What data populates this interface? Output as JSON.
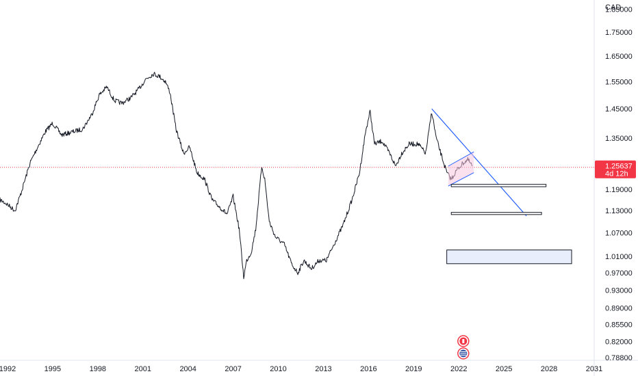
{
  "chart_data": {
    "type": "line",
    "currency": "CAD",
    "x_ticks": [
      "1992",
      "1995",
      "1998",
      "2001",
      "2004",
      "2007",
      "2010",
      "2013",
      "2016",
      "2019",
      "2022",
      "2025",
      "2028",
      "2031"
    ],
    "y_ticks": [
      "1.85000",
      "1.75000",
      "1.65000",
      "1.55000",
      "1.45000",
      "1.35000",
      "1.19000",
      "1.13000",
      "1.07000",
      "1.01000",
      "0.97000",
      "0.93000",
      "0.89000",
      "0.85500",
      "0.82000",
      "0.78800"
    ],
    "xlim": [
      1991.5,
      2031
    ],
    "ylim": [
      0.783,
      1.893
    ],
    "y_scale": "log",
    "last_price": {
      "label": "1.25637",
      "countdown": "4d 12h",
      "value": 1.25637,
      "color": "#f23645"
    },
    "series": [
      {
        "color": "#131722",
        "x": [
          1991.5,
          1991.9,
          1992.5,
          1992.9,
          1993.5,
          1993.9,
          1994.5,
          1995.0,
          1995.6,
          1996.3,
          1997.0,
          1997.6,
          1998.1,
          1998.6,
          1999.1,
          1999.6,
          2000.2,
          2000.7,
          2001.2,
          2001.7,
          2002.1,
          2002.5,
          2002.8,
          2003.2,
          2003.7,
          2004.1,
          2004.6,
          2005.1,
          2005.6,
          2006.1,
          2006.6,
          2007.0,
          2007.4,
          2007.7,
          2007.9,
          2008.2,
          2008.5,
          2008.9,
          2009.1,
          2009.4,
          2009.8,
          2010.4,
          2010.9,
          2011.3,
          2011.7,
          2012.2,
          2012.7,
          2013.2,
          2013.7,
          2014.3,
          2014.9,
          2015.4,
          2015.8,
          2016.1,
          2016.4,
          2016.9,
          2017.4,
          2017.8,
          2018.2,
          2018.7,
          2019.3,
          2019.8,
          2020.2,
          2020.5,
          2020.8,
          2021.2,
          2021.5,
          2021.9,
          2022.3,
          2022.6,
          2022.9
        ],
        "values": [
          1.16,
          1.15,
          1.13,
          1.18,
          1.27,
          1.31,
          1.37,
          1.4,
          1.36,
          1.37,
          1.38,
          1.43,
          1.5,
          1.53,
          1.48,
          1.47,
          1.49,
          1.52,
          1.56,
          1.58,
          1.57,
          1.55,
          1.51,
          1.38,
          1.3,
          1.32,
          1.24,
          1.22,
          1.16,
          1.14,
          1.12,
          1.17,
          1.08,
          0.96,
          1.0,
          1.02,
          1.08,
          1.26,
          1.22,
          1.1,
          1.06,
          1.04,
          0.99,
          0.97,
          1.0,
          0.98,
          1.0,
          1.0,
          1.04,
          1.09,
          1.16,
          1.24,
          1.37,
          1.44,
          1.33,
          1.34,
          1.3,
          1.26,
          1.3,
          1.33,
          1.33,
          1.3,
          1.44,
          1.35,
          1.3,
          1.24,
          1.22,
          1.25,
          1.27,
          1.28,
          1.26
        ]
      }
    ],
    "trendline": {
      "color": "#2962ff",
      "start": [
        2020.2,
        1.45
      ],
      "end": [
        2026.5,
        1.115
      ]
    },
    "wedge": {
      "color": "#2962ff",
      "fill": "#f7c6e0",
      "upper": {
        "start": [
          2021.3,
          1.26
        ],
        "end": [
          2023.0,
          1.305
        ]
      },
      "lower": {
        "start": [
          2021.3,
          1.2
        ],
        "end": [
          2023.0,
          1.24
        ]
      }
    },
    "boxes": [
      {
        "x0": 2021.5,
        "x1": 2027.8,
        "y0": 1.198,
        "y1": 1.205,
        "fill": "#ffffff",
        "stroke": "#131722"
      },
      {
        "x0": 2021.5,
        "x1": 2027.5,
        "y0": 1.119,
        "y1": 1.125,
        "fill": "#ffffff",
        "stroke": "#131722"
      },
      {
        "x0": 2021.2,
        "x1": 2029.5,
        "y0": 0.992,
        "y1": 1.026,
        "fill": "#e8eefb",
        "stroke": "#131722"
      }
    ],
    "events": [
      {
        "icon": "canada-flag-icon",
        "color": "#f23645",
        "x": 2022.3
      },
      {
        "icon": "usa-flag-icon",
        "color": "#f23645",
        "x": 2022.3
      }
    ]
  }
}
